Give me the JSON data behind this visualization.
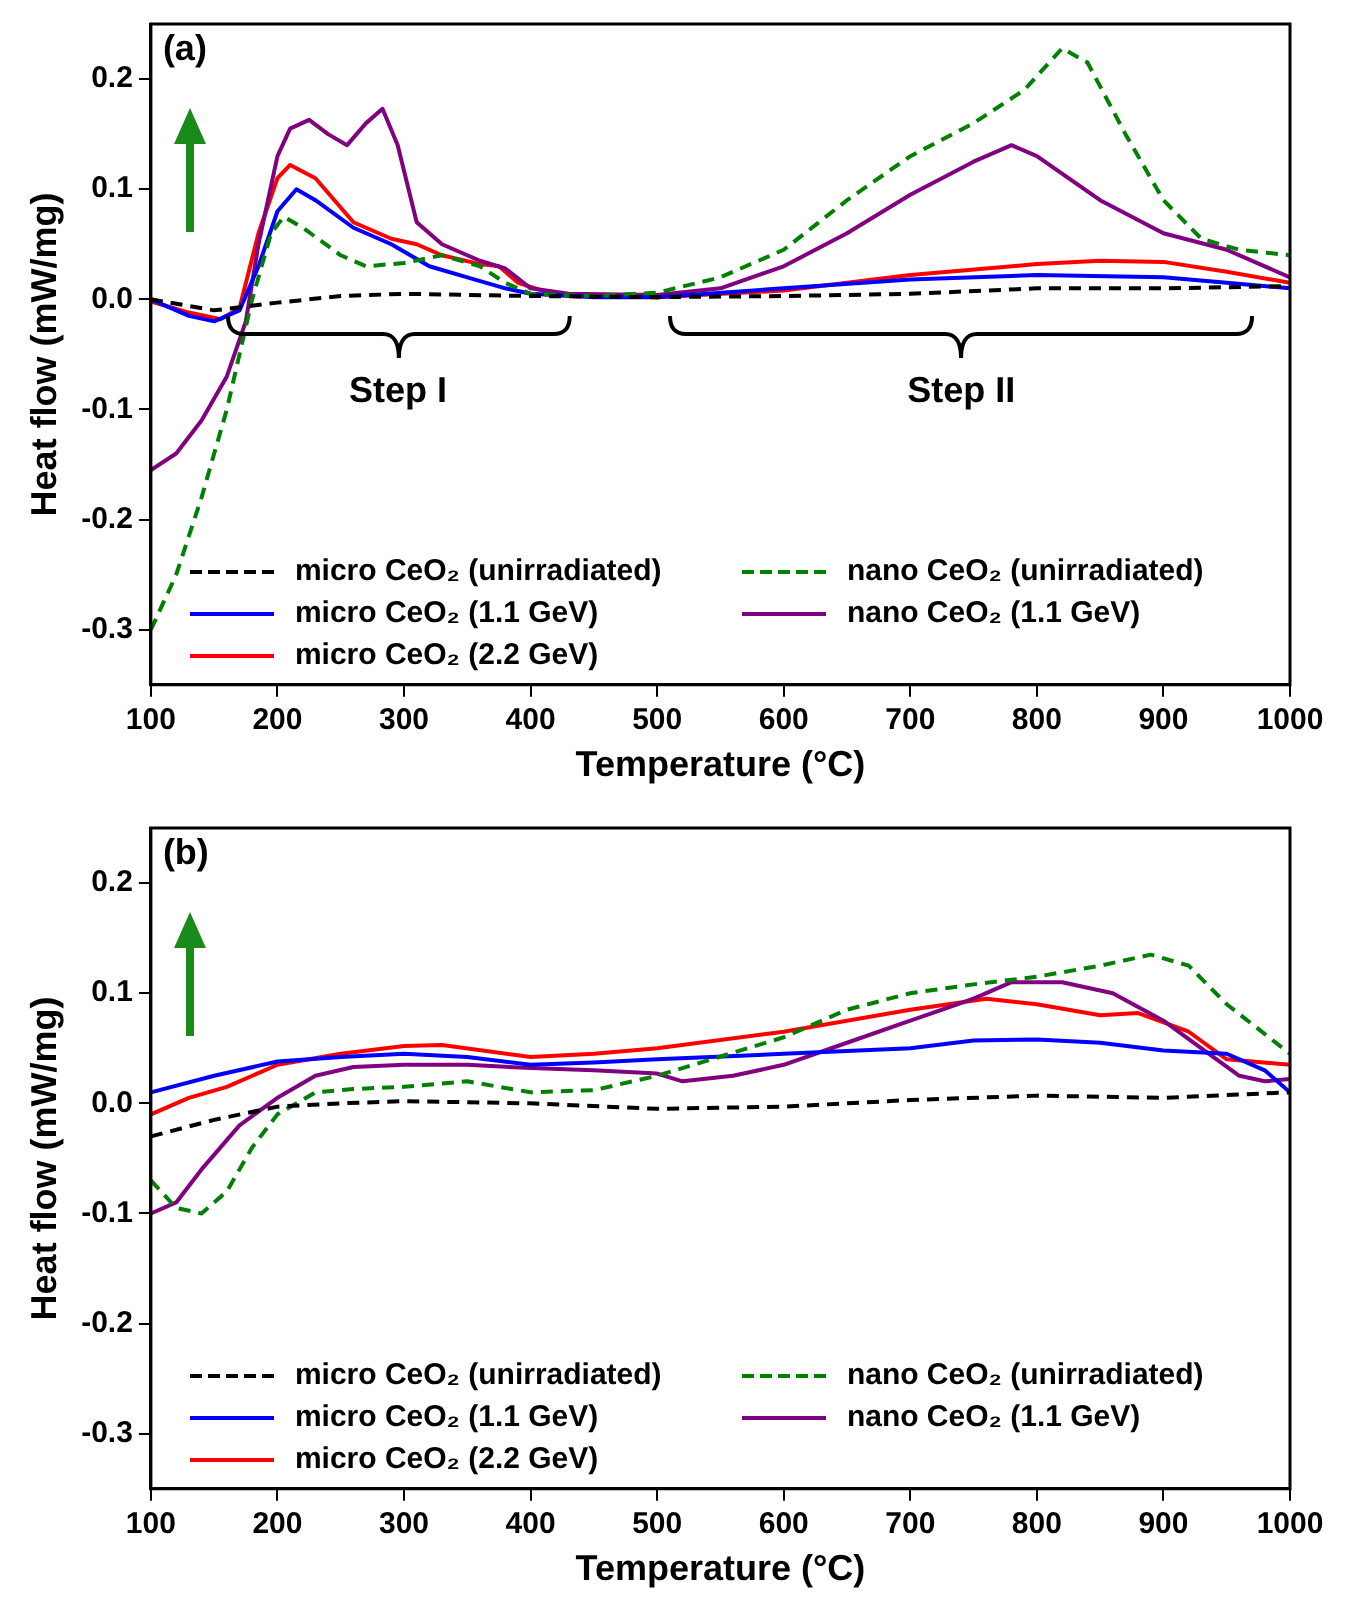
{
  "chart_data": [
    {
      "type": "line",
      "xlabel": "Temperature (°C)",
      "ylabel": "Heat flow (mW/mg)",
      "legend": "bottom",
      "xlim": [
        100,
        1000
      ],
      "xticks": [
        100,
        200,
        300,
        400,
        500,
        600,
        700,
        800,
        900,
        1000
      ],
      "ylim": [
        -0.35,
        0.25
      ],
      "yticks": [
        -0.3,
        -0.2,
        -0.1,
        {
          "value": 0,
          "label": "0.0"
        },
        0.1,
        0.2
      ],
      "annotations": [
        "(a)",
        "Step I",
        "Step II"
      ],
      "series": [
        {
          "name": "micro CeO₂ (unirradiated)",
          "color": "#000000",
          "line_style": "dashed",
          "x": [
            100,
            150,
            200,
            250,
            300,
            400,
            500,
            600,
            700,
            800,
            900,
            1000
          ],
          "values": [
            0,
            -0.01,
            -0.003,
            0.003,
            0.005,
            0.003,
            0.002,
            0.003,
            0.005,
            0.01,
            0.01,
            0.012
          ]
        },
        {
          "name": "nano CeO₂ (unirradiated)",
          "color": "#008000",
          "line_style": "dashed",
          "x": [
            100,
            120,
            140,
            160,
            180,
            195,
            205,
            220,
            250,
            270,
            300,
            330,
            360,
            380,
            400,
            450,
            500,
            550,
            600,
            650,
            700,
            750,
            790,
            820,
            840,
            870,
            900,
            930,
            960,
            1000
          ],
          "values": [
            -0.3,
            -0.25,
            -0.18,
            -0.1,
            0.0,
            0.06,
            0.075,
            0.065,
            0.04,
            0.03,
            0.033,
            0.04,
            0.03,
            0.015,
            0.005,
            0.003,
            0.006,
            0.02,
            0.045,
            0.09,
            0.13,
            0.16,
            0.19,
            0.228,
            0.215,
            0.15,
            0.09,
            0.055,
            0.045,
            0.04
          ]
        },
        {
          "name": "micro CeO₂ (1.1 GeV)",
          "color": "#0000ff",
          "line_style": "solid",
          "x": [
            100,
            130,
            150,
            170,
            185,
            200,
            215,
            230,
            260,
            290,
            320,
            350,
            380,
            400,
            450,
            500,
            600,
            700,
            800,
            900,
            950,
            1000
          ],
          "values": [
            0,
            -0.015,
            -0.02,
            -0.01,
            0.03,
            0.08,
            0.1,
            0.09,
            0.065,
            0.05,
            0.03,
            0.02,
            0.01,
            0.005,
            0.002,
            0.002,
            0.01,
            0.018,
            0.022,
            0.02,
            0.015,
            0.01
          ]
        },
        {
          "name": "nano CeO₂ (1.1 GeV)",
          "color": "#800080",
          "line_style": "solid",
          "x": [
            100,
            120,
            140,
            160,
            175,
            185,
            200,
            210,
            225,
            240,
            255,
            270,
            283,
            295,
            310,
            330,
            360,
            380,
            400,
            430,
            500,
            550,
            600,
            650,
            700,
            750,
            780,
            800,
            850,
            900,
            950,
            1000
          ],
          "values": [
            -0.155,
            -0.14,
            -0.11,
            -0.07,
            -0.02,
            0.05,
            0.13,
            0.155,
            0.163,
            0.15,
            0.14,
            0.16,
            0.173,
            0.14,
            0.07,
            0.05,
            0.035,
            0.028,
            0.01,
            0.005,
            0.004,
            0.01,
            0.03,
            0.06,
            0.095,
            0.125,
            0.14,
            0.13,
            0.09,
            0.06,
            0.045,
            0.02
          ]
        },
        {
          "name": "micro CeO₂ (2.2 GeV)",
          "color": "#ff0000",
          "line_style": "solid",
          "x": [
            100,
            130,
            155,
            170,
            185,
            200,
            210,
            230,
            260,
            290,
            310,
            330,
            360,
            375,
            390,
            420,
            500,
            600,
            700,
            800,
            850,
            900,
            950,
            1000
          ],
          "values": [
            -0.002,
            -0.012,
            -0.018,
            -0.008,
            0.06,
            0.11,
            0.122,
            0.11,
            0.07,
            0.055,
            0.05,
            0.04,
            0.032,
            0.03,
            0.015,
            0.004,
            0.002,
            0.008,
            0.022,
            0.032,
            0.035,
            0.034,
            0.025,
            0.015
          ]
        }
      ]
    },
    {
      "type": "line",
      "xlabel": "Temperature (°C)",
      "ylabel": "Heat flow (mW/mg)",
      "legend": "bottom",
      "xlim": [
        100,
        1000
      ],
      "xticks": [
        100,
        200,
        300,
        400,
        500,
        600,
        700,
        800,
        900,
        1000
      ],
      "ylim": [
        -0.35,
        0.25
      ],
      "yticks": [
        -0.3,
        -0.2,
        -0.1,
        {
          "value": 0,
          "label": "0.0"
        },
        0.1,
        0.2
      ],
      "annotations": [
        "(b)"
      ],
      "series": [
        {
          "name": "micro CeO₂ (unirradiated)",
          "color": "#000000",
          "line_style": "dashed",
          "x": [
            100,
            150,
            200,
            250,
            300,
            400,
            500,
            600,
            700,
            800,
            900,
            1000
          ],
          "values": [
            -0.03,
            -0.015,
            -0.003,
            0.0,
            0.002,
            0.0,
            -0.005,
            -0.003,
            0.003,
            0.007,
            0.005,
            0.01
          ]
        },
        {
          "name": "nano CeO₂ (unirradiated)",
          "color": "#008000",
          "line_style": "dashed",
          "x": [
            100,
            120,
            140,
            160,
            180,
            200,
            230,
            260,
            300,
            350,
            400,
            450,
            500,
            600,
            650,
            700,
            750,
            800,
            850,
            890,
            920,
            950,
            1000
          ],
          "values": [
            -0.07,
            -0.095,
            -0.1,
            -0.08,
            -0.04,
            -0.01,
            0.01,
            0.013,
            0.015,
            0.02,
            0.01,
            0.012,
            0.025,
            0.06,
            0.085,
            0.1,
            0.108,
            0.115,
            0.125,
            0.135,
            0.125,
            0.09,
            0.045
          ]
        },
        {
          "name": "micro CeO₂ (1.1 GeV)",
          "color": "#0000ff",
          "line_style": "solid",
          "x": [
            100,
            150,
            200,
            250,
            300,
            350,
            400,
            450,
            500,
            600,
            700,
            750,
            800,
            850,
            900,
            950,
            980,
            1000
          ],
          "values": [
            0.01,
            0.025,
            0.038,
            0.042,
            0.045,
            0.042,
            0.035,
            0.037,
            0.04,
            0.045,
            0.05,
            0.057,
            0.058,
            0.055,
            0.048,
            0.045,
            0.03,
            0.01
          ]
        },
        {
          "name": "nano CeO₂ (1.1 GeV)",
          "color": "#800080",
          "line_style": "solid",
          "x": [
            100,
            120,
            140,
            170,
            200,
            230,
            260,
            300,
            350,
            400,
            450,
            500,
            520,
            560,
            600,
            650,
            700,
            750,
            780,
            820,
            860,
            900,
            930,
            960,
            980,
            1000
          ],
          "values": [
            -0.1,
            -0.09,
            -0.06,
            -0.02,
            0.005,
            0.025,
            0.033,
            0.035,
            0.035,
            0.032,
            0.03,
            0.027,
            0.02,
            0.025,
            0.035,
            0.055,
            0.075,
            0.095,
            0.11,
            0.11,
            0.1,
            0.075,
            0.05,
            0.025,
            0.02,
            0.022
          ]
        },
        {
          "name": "micro CeO₂ (2.2 GeV)",
          "color": "#ff0000",
          "line_style": "solid",
          "x": [
            100,
            130,
            160,
            200,
            250,
            300,
            330,
            400,
            450,
            500,
            600,
            700,
            760,
            800,
            850,
            880,
            920,
            950,
            1000
          ],
          "values": [
            -0.01,
            0.005,
            0.015,
            0.035,
            0.045,
            0.052,
            0.053,
            0.042,
            0.045,
            0.05,
            0.065,
            0.085,
            0.095,
            0.09,
            0.08,
            0.082,
            0.065,
            0.04,
            0.035
          ]
        }
      ]
    }
  ]
}
